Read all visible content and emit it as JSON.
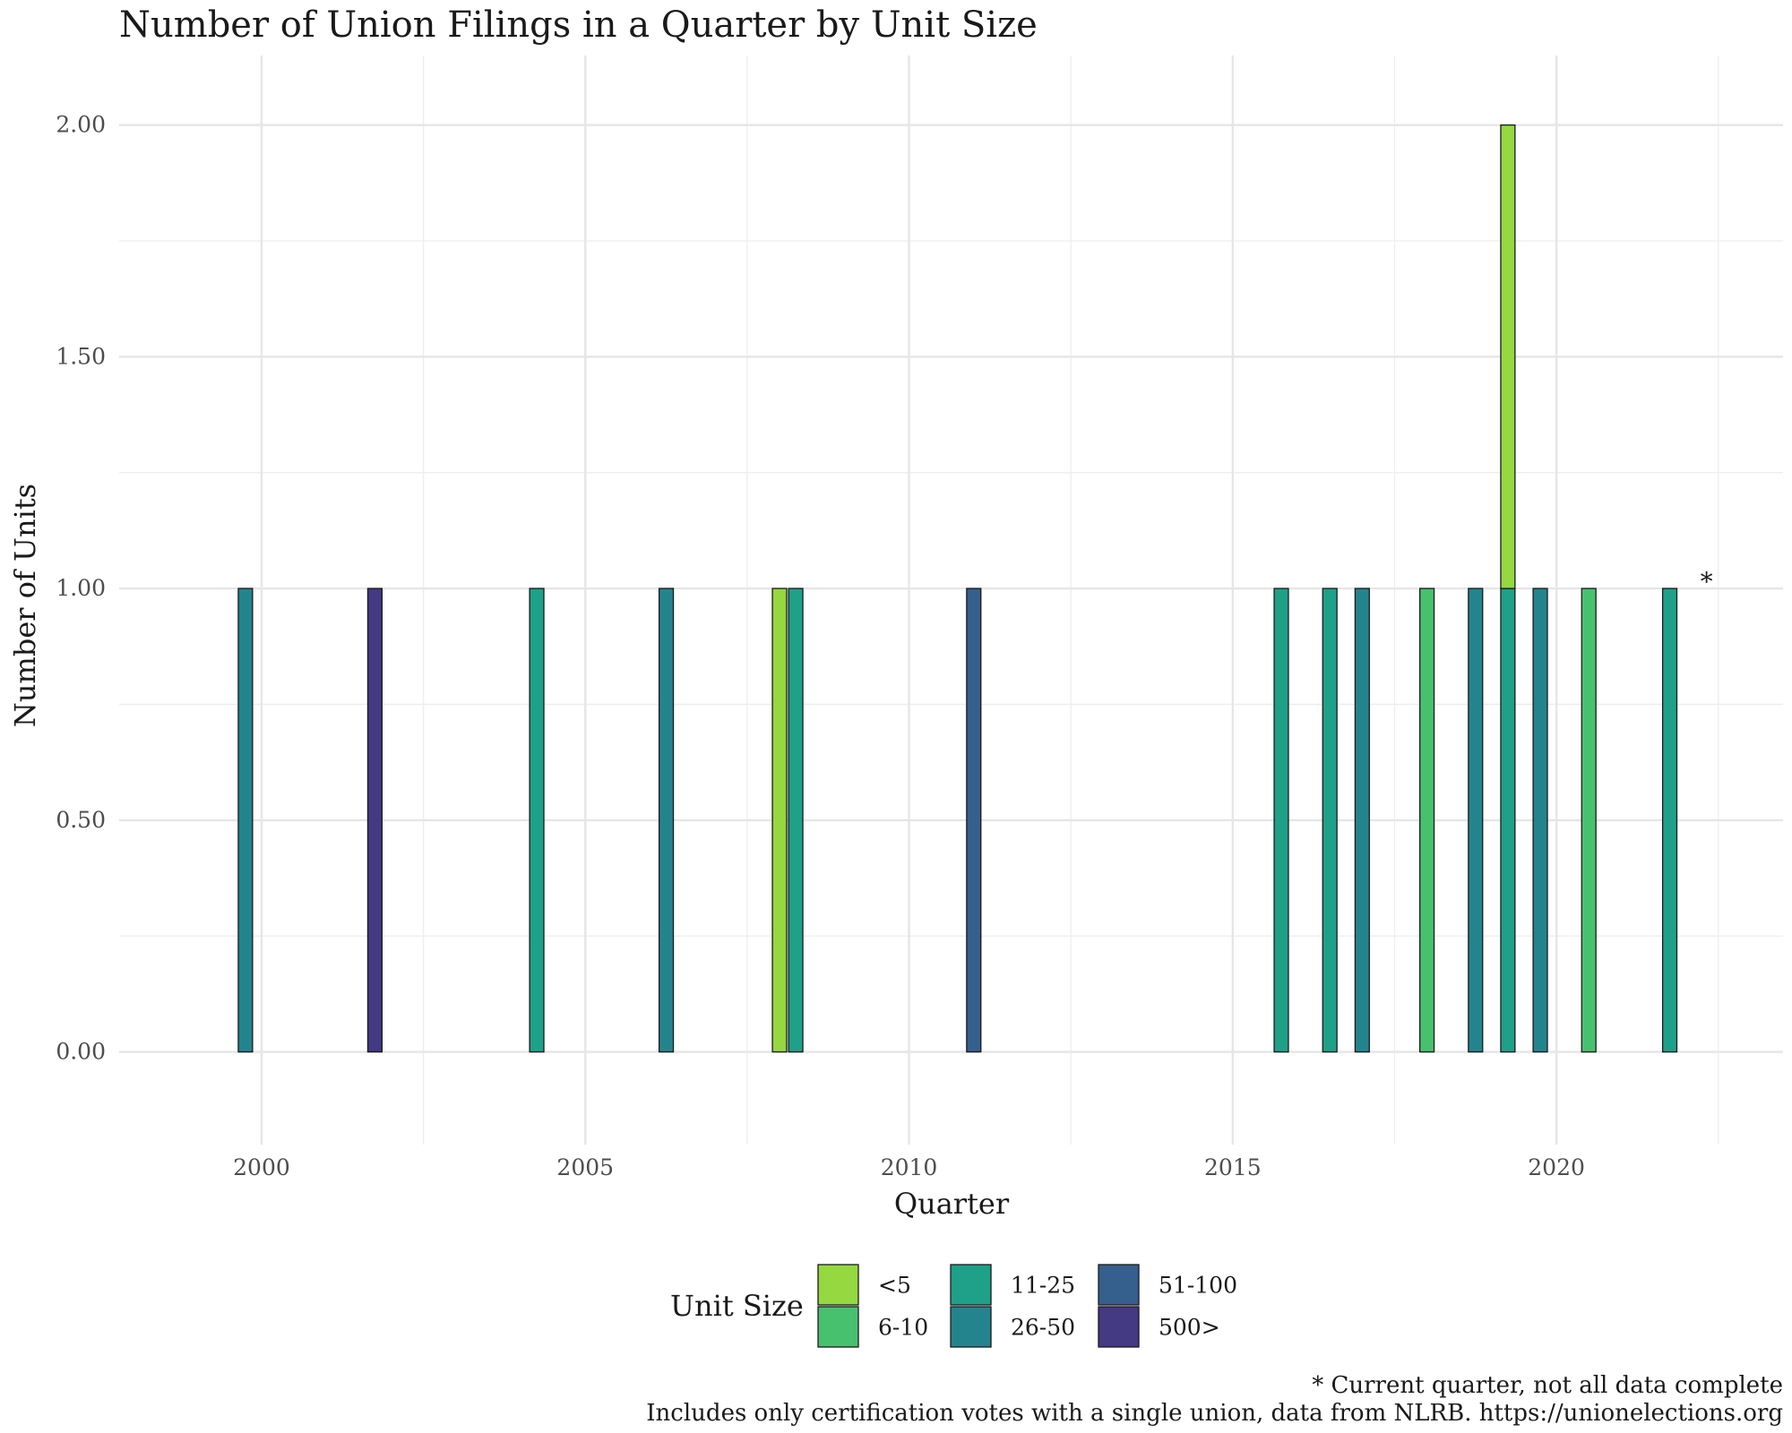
{
  "chart_data": {
    "type": "bar",
    "stacked": true,
    "title": "Number of Union Filings in a Quarter by Unit Size",
    "xlabel": "Quarter",
    "ylabel": "Number of Units",
    "xlim": [
      1997.8,
      2023.5
    ],
    "ylim": [
      -0.2,
      2.15
    ],
    "x_ticks": [
      2000,
      2005,
      2010,
      2015,
      2020
    ],
    "y_ticks": [
      0.0,
      0.5,
      1.0,
      1.5,
      2.0
    ],
    "y_tick_labels": [
      "0.00",
      "0.50",
      "1.00",
      "1.50",
      "2.00"
    ],
    "grid": true,
    "legend": {
      "title": "Unit Size",
      "position": "bottom",
      "entries": [
        {
          "label": "<5",
          "color": "#95d840"
        },
        {
          "label": "6-10",
          "color": "#48c16e"
        },
        {
          "label": "11-25",
          "color": "#1fa088"
        },
        {
          "label": "26-50",
          "color": "#24848e"
        },
        {
          "label": "51-100",
          "color": "#355f8d"
        },
        {
          "label": "500>",
          "color": "#443983"
        }
      ]
    },
    "bars": [
      {
        "quarter": "1999Q4",
        "x": 1999.75,
        "series": "26-50",
        "value": 1
      },
      {
        "quarter": "2001Q4",
        "x": 2001.75,
        "series": "500>",
        "value": 1
      },
      {
        "quarter": "2004Q2",
        "x": 2004.25,
        "series": "11-25",
        "value": 1
      },
      {
        "quarter": "2006Q2",
        "x": 2006.25,
        "series": "26-50",
        "value": 1
      },
      {
        "quarter": "2008Q1",
        "x": 2008.0,
        "series": "<5",
        "value": 1
      },
      {
        "quarter": "2008Q2",
        "x": 2008.25,
        "series": "11-25",
        "value": 1
      },
      {
        "quarter": "2011Q1",
        "x": 2011.0,
        "series": "51-100",
        "value": 1
      },
      {
        "quarter": "2015Q4",
        "x": 2015.75,
        "series": "11-25",
        "value": 1
      },
      {
        "quarter": "2016Q3",
        "x": 2016.5,
        "series": "11-25",
        "value": 1
      },
      {
        "quarter": "2017Q1",
        "x": 2017.0,
        "series": "26-50",
        "value": 1
      },
      {
        "quarter": "2018Q1",
        "x": 2018.0,
        "series": "6-10",
        "value": 1
      },
      {
        "quarter": "2018Q4",
        "x": 2018.75,
        "series": "26-50",
        "value": 1
      },
      {
        "quarter": "2019Q2",
        "x": 2019.25,
        "series": "<5",
        "value": 1
      },
      {
        "quarter": "2019Q2",
        "x": 2019.25,
        "series": "11-25",
        "value": 1
      },
      {
        "quarter": "2019Q4",
        "x": 2019.75,
        "series": "26-50",
        "value": 1
      },
      {
        "quarter": "2020Q3",
        "x": 2020.5,
        "series": "6-10",
        "value": 1
      },
      {
        "quarter": "2021Q4",
        "x": 2021.75,
        "series": "11-25",
        "value": 1
      }
    ],
    "annotation": {
      "text": "*",
      "x": 2022.25,
      "y": 1.0
    },
    "caption": [
      "* Current quarter, not all data complete",
      "Includes only certification votes with a single union, data from NLRB. https://unionelections.org"
    ]
  }
}
